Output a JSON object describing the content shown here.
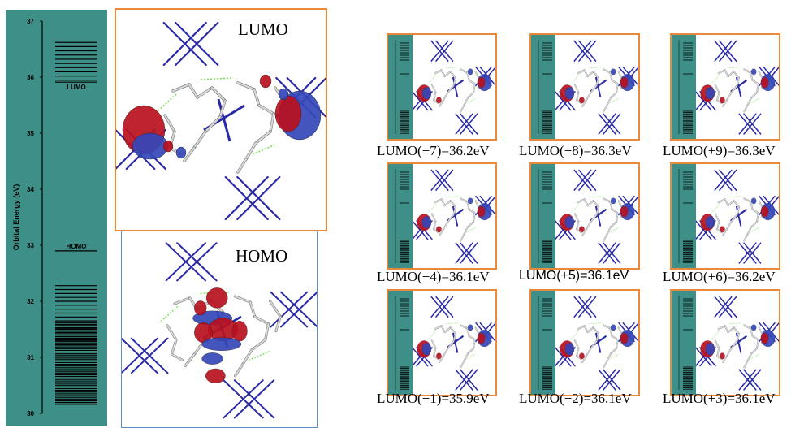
{
  "energy_diagram": {
    "axis_label": "Orbital Energy (eV)",
    "ticks": [
      "37",
      "36",
      "35",
      "34",
      "33",
      "32",
      "31",
      "30"
    ],
    "lumo_tag": "LUMO",
    "homo_tag": "HOMO"
  },
  "main_views": [
    {
      "label": "LUMO"
    },
    {
      "label": "HOMO"
    }
  ],
  "thumbnails": [
    {
      "caption": "LUMO(+7)=36.2eV"
    },
    {
      "caption": "LUMO(+8)=36.3eV"
    },
    {
      "caption": "LUMO(+9)=36.3eV"
    },
    {
      "caption": "LUMO(+4)=36.1eV"
    },
    {
      "caption": "LUMO(+5)=36.1eV"
    },
    {
      "caption": "LUMO(+6)=36.2eV"
    },
    {
      "caption": "LUMO(+1)=35.9eV"
    },
    {
      "caption": "LUMO(+2)=36.1eV"
    },
    {
      "caption": "LUMO(+3)=36.1eV"
    }
  ],
  "colors": {
    "panel": "#3e8f87",
    "frame_orange": "#e98a3b",
    "frame_blue": "#5b8fc7",
    "bond_blue": "#2a2aa8",
    "lobe_red": "#b8101e",
    "lobe_blue": "#3447b8"
  }
}
